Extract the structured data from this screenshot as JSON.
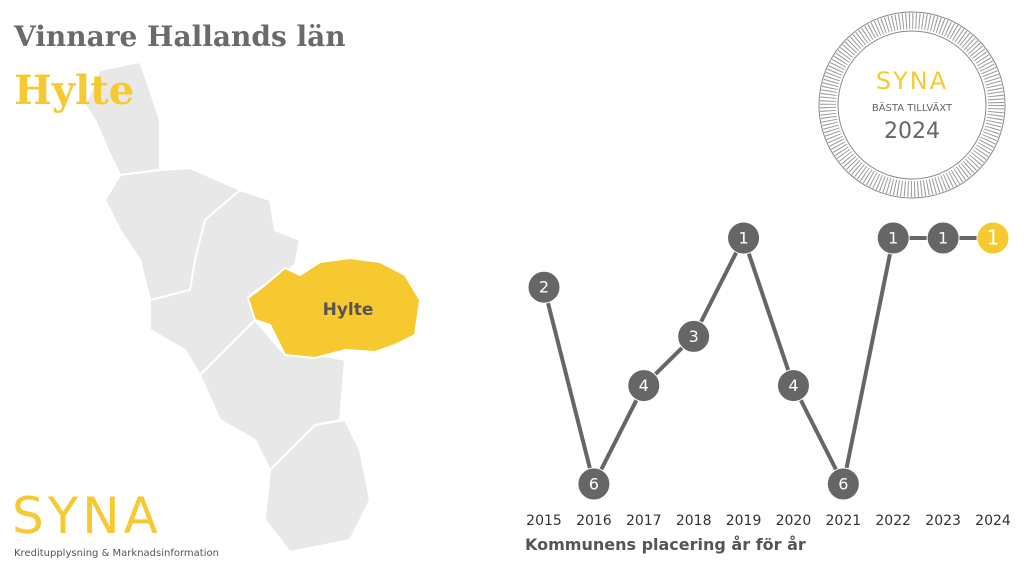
{
  "header": {
    "title": "Vinnare Hallands län",
    "winner": "Hylte"
  },
  "map": {
    "label": "Hylte"
  },
  "badge": {
    "brand": "SYNA",
    "text": "BÄSTA TILLVÄXT",
    "year": "2024"
  },
  "logo": {
    "brand": "SYNA",
    "tagline": "Kreditupplysning & Marknadsinformation"
  },
  "chart_data": {
    "type": "line",
    "categories": [
      "2015",
      "2016",
      "2017",
      "2018",
      "2019",
      "2020",
      "2021",
      "2022",
      "2023",
      "2024"
    ],
    "values": [
      2,
      6,
      4,
      3,
      1,
      4,
      6,
      1,
      1,
      1
    ],
    "ylim": [
      6,
      1
    ],
    "xlabel": "Kommunens placering år för år",
    "color": "#666666",
    "highlight_color": "#f5c92f"
  }
}
